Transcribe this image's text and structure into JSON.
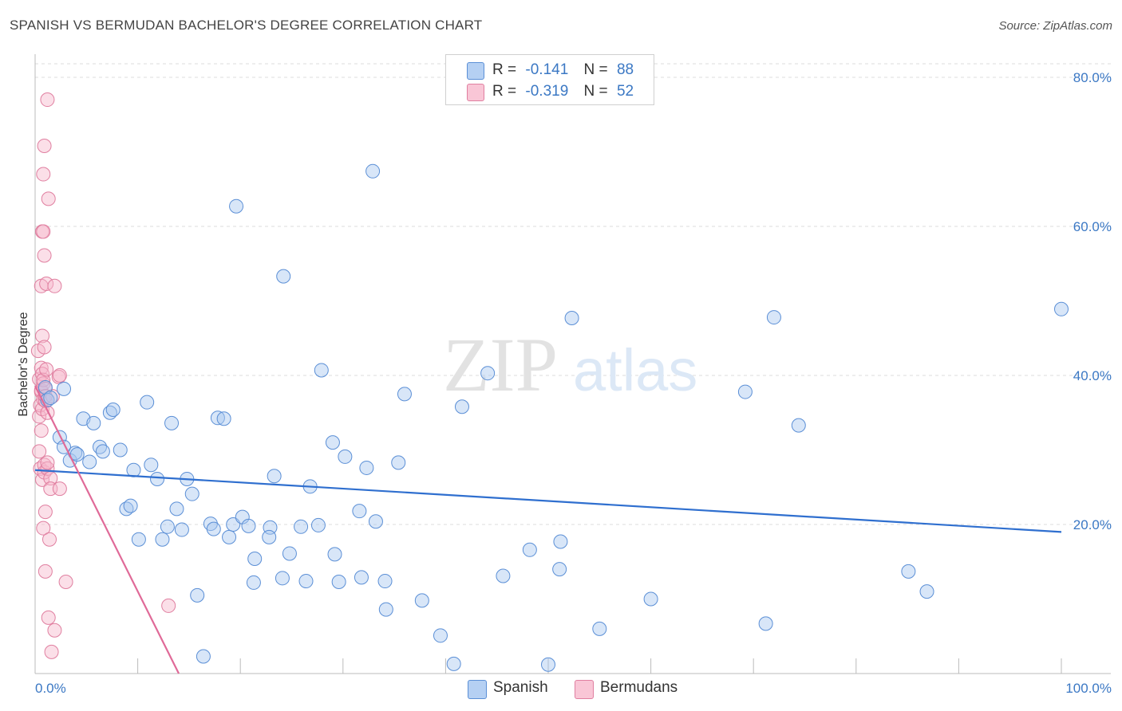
{
  "title": "SPANISH VS BERMUDAN BACHELOR'S DEGREE CORRELATION CHART",
  "source": "Source: ZipAtlas.com",
  "watermark": {
    "zip": "ZIP",
    "atlas": "atlas"
  },
  "legend": {
    "rows": [
      {
        "r_label": "R =",
        "r_value": "-0.141",
        "n_label": "N =",
        "n_value": "88"
      },
      {
        "r_label": "R =",
        "r_value": "-0.319",
        "n_label": "N =",
        "n_value": "52"
      }
    ]
  },
  "bottom_legend": [
    "Spanish",
    "Bermudans"
  ],
  "colors": {
    "spanish_fill": "#a8c8f0",
    "spanish_stroke": "#5b8fd6",
    "spanish_line": "#2f6fcf",
    "bermudan_fill": "#f7b8cb",
    "bermudan_stroke": "#e07fa0",
    "bermudan_line": "#e06a98",
    "tick_text": "#3b78c4",
    "grid": "#dddddd"
  },
  "chart_data": {
    "type": "scatter",
    "title": "SPANISH VS BERMUDAN BACHELOR'S DEGREE CORRELATION CHART",
    "xlabel": "",
    "ylabel": "Bachelor's Degree",
    "xlim": [
      0,
      100
    ],
    "ylim": [
      0,
      82
    ],
    "x_tick_labels": [
      "0.0%",
      "100.0%"
    ],
    "y_ticks": [
      20,
      40,
      60,
      80
    ],
    "y_tick_labels": [
      "20.0%",
      "40.0%",
      "60.0%",
      "80.0%"
    ],
    "series": [
      {
        "name": "Spanish",
        "r": -0.141,
        "n": 88,
        "trend": {
          "x": [
            0,
            100
          ],
          "y": [
            27.3,
            19.0
          ]
        },
        "points": [
          [
            1.0,
            38.4
          ],
          [
            1.2,
            36.7
          ],
          [
            1.5,
            37.0
          ],
          [
            2.4,
            31.7
          ],
          [
            2.8,
            38.2
          ],
          [
            2.8,
            30.4
          ],
          [
            3.4,
            28.6
          ],
          [
            3.9,
            29.6
          ],
          [
            4.1,
            29.4
          ],
          [
            4.7,
            34.2
          ],
          [
            5.3,
            28.4
          ],
          [
            5.7,
            33.6
          ],
          [
            6.3,
            30.4
          ],
          [
            6.6,
            29.8
          ],
          [
            7.3,
            35.0
          ],
          [
            7.6,
            35.4
          ],
          [
            8.3,
            30.0
          ],
          [
            8.9,
            22.1
          ],
          [
            9.3,
            22.5
          ],
          [
            9.6,
            27.3
          ],
          [
            10.1,
            18.0
          ],
          [
            10.9,
            36.4
          ],
          [
            11.3,
            28.0
          ],
          [
            11.9,
            26.1
          ],
          [
            12.4,
            18.0
          ],
          [
            12.9,
            19.7
          ],
          [
            13.3,
            33.6
          ],
          [
            13.8,
            22.1
          ],
          [
            14.3,
            19.3
          ],
          [
            14.8,
            26.1
          ],
          [
            15.3,
            24.1
          ],
          [
            15.8,
            10.5
          ],
          [
            16.4,
            2.3
          ],
          [
            17.1,
            20.1
          ],
          [
            17.4,
            19.4
          ],
          [
            17.8,
            34.3
          ],
          [
            18.4,
            34.2
          ],
          [
            18.9,
            18.3
          ],
          [
            19.3,
            20.0
          ],
          [
            19.6,
            62.7
          ],
          [
            20.2,
            21.0
          ],
          [
            20.8,
            19.8
          ],
          [
            21.4,
            15.4
          ],
          [
            21.3,
            12.2
          ],
          [
            22.9,
            19.6
          ],
          [
            22.8,
            18.3
          ],
          [
            23.3,
            26.5
          ],
          [
            24.1,
            12.8
          ],
          [
            24.2,
            53.3
          ],
          [
            24.8,
            16.1
          ],
          [
            25.9,
            19.7
          ],
          [
            26.4,
            12.4
          ],
          [
            26.8,
            25.1
          ],
          [
            27.6,
            19.9
          ],
          [
            27.9,
            40.7
          ],
          [
            29.0,
            31.0
          ],
          [
            29.2,
            16.0
          ],
          [
            29.6,
            12.3
          ],
          [
            30.2,
            29.1
          ],
          [
            31.6,
            21.8
          ],
          [
            31.8,
            12.9
          ],
          [
            32.3,
            27.6
          ],
          [
            32.9,
            67.4
          ],
          [
            33.2,
            20.4
          ],
          [
            34.1,
            12.4
          ],
          [
            34.2,
            8.6
          ],
          [
            35.4,
            28.3
          ],
          [
            36.0,
            37.5
          ],
          [
            37.7,
            9.8
          ],
          [
            39.5,
            5.1
          ],
          [
            40.8,
            1.3
          ],
          [
            41.6,
            35.8
          ],
          [
            44.1,
            40.3
          ],
          [
            45.6,
            13.1
          ],
          [
            48.2,
            16.6
          ],
          [
            50.0,
            1.2
          ],
          [
            51.1,
            14.0
          ],
          [
            51.2,
            17.7
          ],
          [
            52.3,
            47.7
          ],
          [
            55.0,
            6.0
          ],
          [
            60.0,
            10.0
          ],
          [
            69.2,
            37.8
          ],
          [
            71.2,
            6.7
          ],
          [
            72.0,
            47.8
          ],
          [
            74.4,
            33.3
          ],
          [
            85.1,
            13.7
          ],
          [
            86.9,
            11.0
          ],
          [
            100.0,
            48.9
          ]
        ]
      },
      {
        "name": "Bermudans",
        "r": -0.319,
        "n": 52,
        "trend": {
          "x": [
            0,
            14.0
          ],
          "y": [
            38.6,
            0
          ]
        },
        "points": [
          [
            0.3,
            43.3
          ],
          [
            0.4,
            34.5
          ],
          [
            0.4,
            39.5
          ],
          [
            0.4,
            29.8
          ],
          [
            0.5,
            27.5
          ],
          [
            0.5,
            36.0
          ],
          [
            0.6,
            41.0
          ],
          [
            0.6,
            37.8
          ],
          [
            0.6,
            38.0
          ],
          [
            0.6,
            32.6
          ],
          [
            0.6,
            52.0
          ],
          [
            0.7,
            45.3
          ],
          [
            0.7,
            35.5
          ],
          [
            0.7,
            59.3
          ],
          [
            0.7,
            26.0
          ],
          [
            0.7,
            40.2
          ],
          [
            0.8,
            38.9
          ],
          [
            0.8,
            59.3
          ],
          [
            0.8,
            19.5
          ],
          [
            0.8,
            39.4
          ],
          [
            0.8,
            36.8
          ],
          [
            0.8,
            67.0
          ],
          [
            0.9,
            27.0
          ],
          [
            0.9,
            28.0
          ],
          [
            0.9,
            43.8
          ],
          [
            0.9,
            56.1
          ],
          [
            0.9,
            70.8
          ],
          [
            1.0,
            38.2
          ],
          [
            1.0,
            13.7
          ],
          [
            1.0,
            21.7
          ],
          [
            1.0,
            36.6
          ],
          [
            1.0,
            37.2
          ],
          [
            1.1,
            40.8
          ],
          [
            1.1,
            52.3
          ],
          [
            1.2,
            27.5
          ],
          [
            1.2,
            35.0
          ],
          [
            1.2,
            28.3
          ],
          [
            1.2,
            77.0
          ],
          [
            1.3,
            7.5
          ],
          [
            1.3,
            63.7
          ],
          [
            1.4,
            18.0
          ],
          [
            1.5,
            26.2
          ],
          [
            1.5,
            24.8
          ],
          [
            1.6,
            2.9
          ],
          [
            1.7,
            37.2
          ],
          [
            1.9,
            52.0
          ],
          [
            1.9,
            5.8
          ],
          [
            2.3,
            39.8
          ],
          [
            2.4,
            40.0
          ],
          [
            2.4,
            24.8
          ],
          [
            3.0,
            12.3
          ],
          [
            13.0,
            9.1
          ]
        ]
      }
    ]
  }
}
